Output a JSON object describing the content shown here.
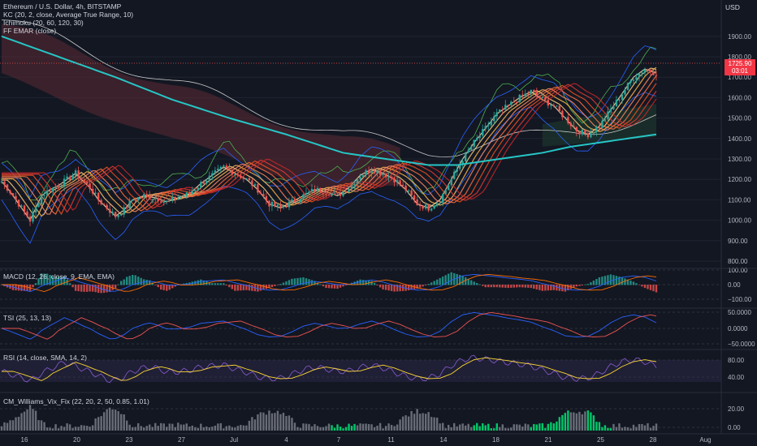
{
  "header": {
    "symbol_title": "Ethereum / U.S. Dollar, 4h, BITSTAMP",
    "currency": "USD"
  },
  "indicators_main": [
    "KC (20, 2, close, Average True Range, 10)",
    "Ichimoku (20, 60, 120, 30)",
    "FF EMAR (close)"
  ],
  "price_tag": {
    "price": "1725.90",
    "countdown": "03:01"
  },
  "panes": {
    "macd": {
      "label": "MACD (12, 26, close, 9, EMA, EMA)",
      "ticks": [
        "100.00",
        "0.00",
        "−100.00"
      ]
    },
    "tsi": {
      "label": "TSI (25, 13, 13)",
      "ticks": [
        "50.0000",
        "0.0000",
        "−50.0000"
      ]
    },
    "rsi": {
      "label": "RSI (14, close, SMA, 14, 2)",
      "ticks": [
        "80.00",
        "40.00"
      ]
    },
    "vix": {
      "label": "CM_Williams_Vix_Fix (22, 20, 2, 50, 0.85, 1.01)",
      "ticks": [
        "20.00",
        "0.00"
      ]
    }
  },
  "colors": {
    "background": "#131722",
    "up": "#26a69a",
    "down": "#ef5350",
    "ema200": "#26c6c6",
    "kc": "#2962ff",
    "cloud_bear": "#5b2a33",
    "cloud_bull": "#1e3a2e",
    "vix_bar": "#787b86",
    "vix_alert": "#00e676",
    "macd": "#2962ff",
    "signal": "#ff6d00",
    "rsi_line": "#7e57c2",
    "rsi_ma": "#fdd835"
  },
  "chart_data": [
    {
      "type": "candlestick",
      "title": "Ethereum / U.S. Dollar, 4h, BITSTAMP",
      "y_ticks": [
        "1900.00",
        "1800.00",
        "1700.00",
        "1600.00",
        "1500.00",
        "1400.00",
        "1300.00",
        "1200.00",
        "1100.00",
        "1000.00",
        "900.00",
        "800.00"
      ],
      "x_ticks": [
        "16",
        "20",
        "23",
        "27",
        "Jul",
        "4",
        "7",
        "11",
        "14",
        "18",
        "21",
        "25",
        "28",
        "Aug"
      ],
      "ylim": [
        780,
        1950
      ],
      "close_path": [
        [
          0,
          1190
        ],
        [
          3,
          1140
        ],
        [
          6,
          1080
        ],
        [
          8,
          1040
        ],
        [
          10,
          1000
        ],
        [
          12,
          1060
        ],
        [
          14,
          1120
        ],
        [
          17,
          1150
        ],
        [
          20,
          1170
        ],
        [
          23,
          1200
        ],
        [
          26,
          1230
        ],
        [
          28,
          1200
        ],
        [
          31,
          1160
        ],
        [
          34,
          1100
        ],
        [
          37,
          1060
        ],
        [
          40,
          1020
        ],
        [
          43,
          1050
        ],
        [
          46,
          1100
        ],
        [
          50,
          1120
        ],
        [
          54,
          1110
        ],
        [
          58,
          1090
        ],
        [
          62,
          1110
        ],
        [
          66,
          1130
        ],
        [
          70,
          1180
        ],
        [
          74,
          1220
        ],
        [
          78,
          1260
        ],
        [
          82,
          1230
        ],
        [
          86,
          1200
        ],
        [
          90,
          1150
        ],
        [
          94,
          1080
        ],
        [
          98,
          1060
        ],
        [
          102,
          1090
        ],
        [
          106,
          1120
        ],
        [
          110,
          1150
        ],
        [
          114,
          1140
        ],
        [
          118,
          1120
        ],
        [
          122,
          1160
        ],
        [
          126,
          1220
        ],
        [
          130,
          1250
        ],
        [
          134,
          1230
        ],
        [
          138,
          1200
        ],
        [
          142,
          1150
        ],
        [
          146,
          1080
        ],
        [
          150,
          1060
        ],
        [
          154,
          1100
        ],
        [
          158,
          1200
        ],
        [
          162,
          1300
        ],
        [
          166,
          1380
        ],
        [
          170,
          1450
        ],
        [
          174,
          1520
        ],
        [
          178,
          1560
        ],
        [
          182,
          1600
        ],
        [
          186,
          1630
        ],
        [
          190,
          1590
        ],
        [
          194,
          1560
        ],
        [
          198,
          1500
        ],
        [
          202,
          1440
        ],
        [
          206,
          1420
        ],
        [
          210,
          1460
        ],
        [
          214,
          1540
        ],
        [
          218,
          1620
        ],
        [
          222,
          1700
        ],
        [
          226,
          1740
        ],
        [
          230,
          1720
        ]
      ],
      "ema200": [
        [
          0,
          1900
        ],
        [
          20,
          1800
        ],
        [
          40,
          1700
        ],
        [
          60,
          1590
        ],
        [
          80,
          1500
        ],
        [
          100,
          1420
        ],
        [
          120,
          1330
        ],
        [
          140,
          1290
        ],
        [
          150,
          1270
        ],
        [
          160,
          1270
        ],
        [
          170,
          1290
        ],
        [
          180,
          1310
        ],
        [
          190,
          1330
        ],
        [
          200,
          1360
        ],
        [
          210,
          1380
        ],
        [
          220,
          1400
        ],
        [
          230,
          1420
        ]
      ]
    },
    {
      "type": "bar",
      "title": "CM_Williams_Vix_Fix (22, 20, 2, 50, 0.85, 1.01)",
      "ylim": [
        0,
        30
      ]
    }
  ]
}
